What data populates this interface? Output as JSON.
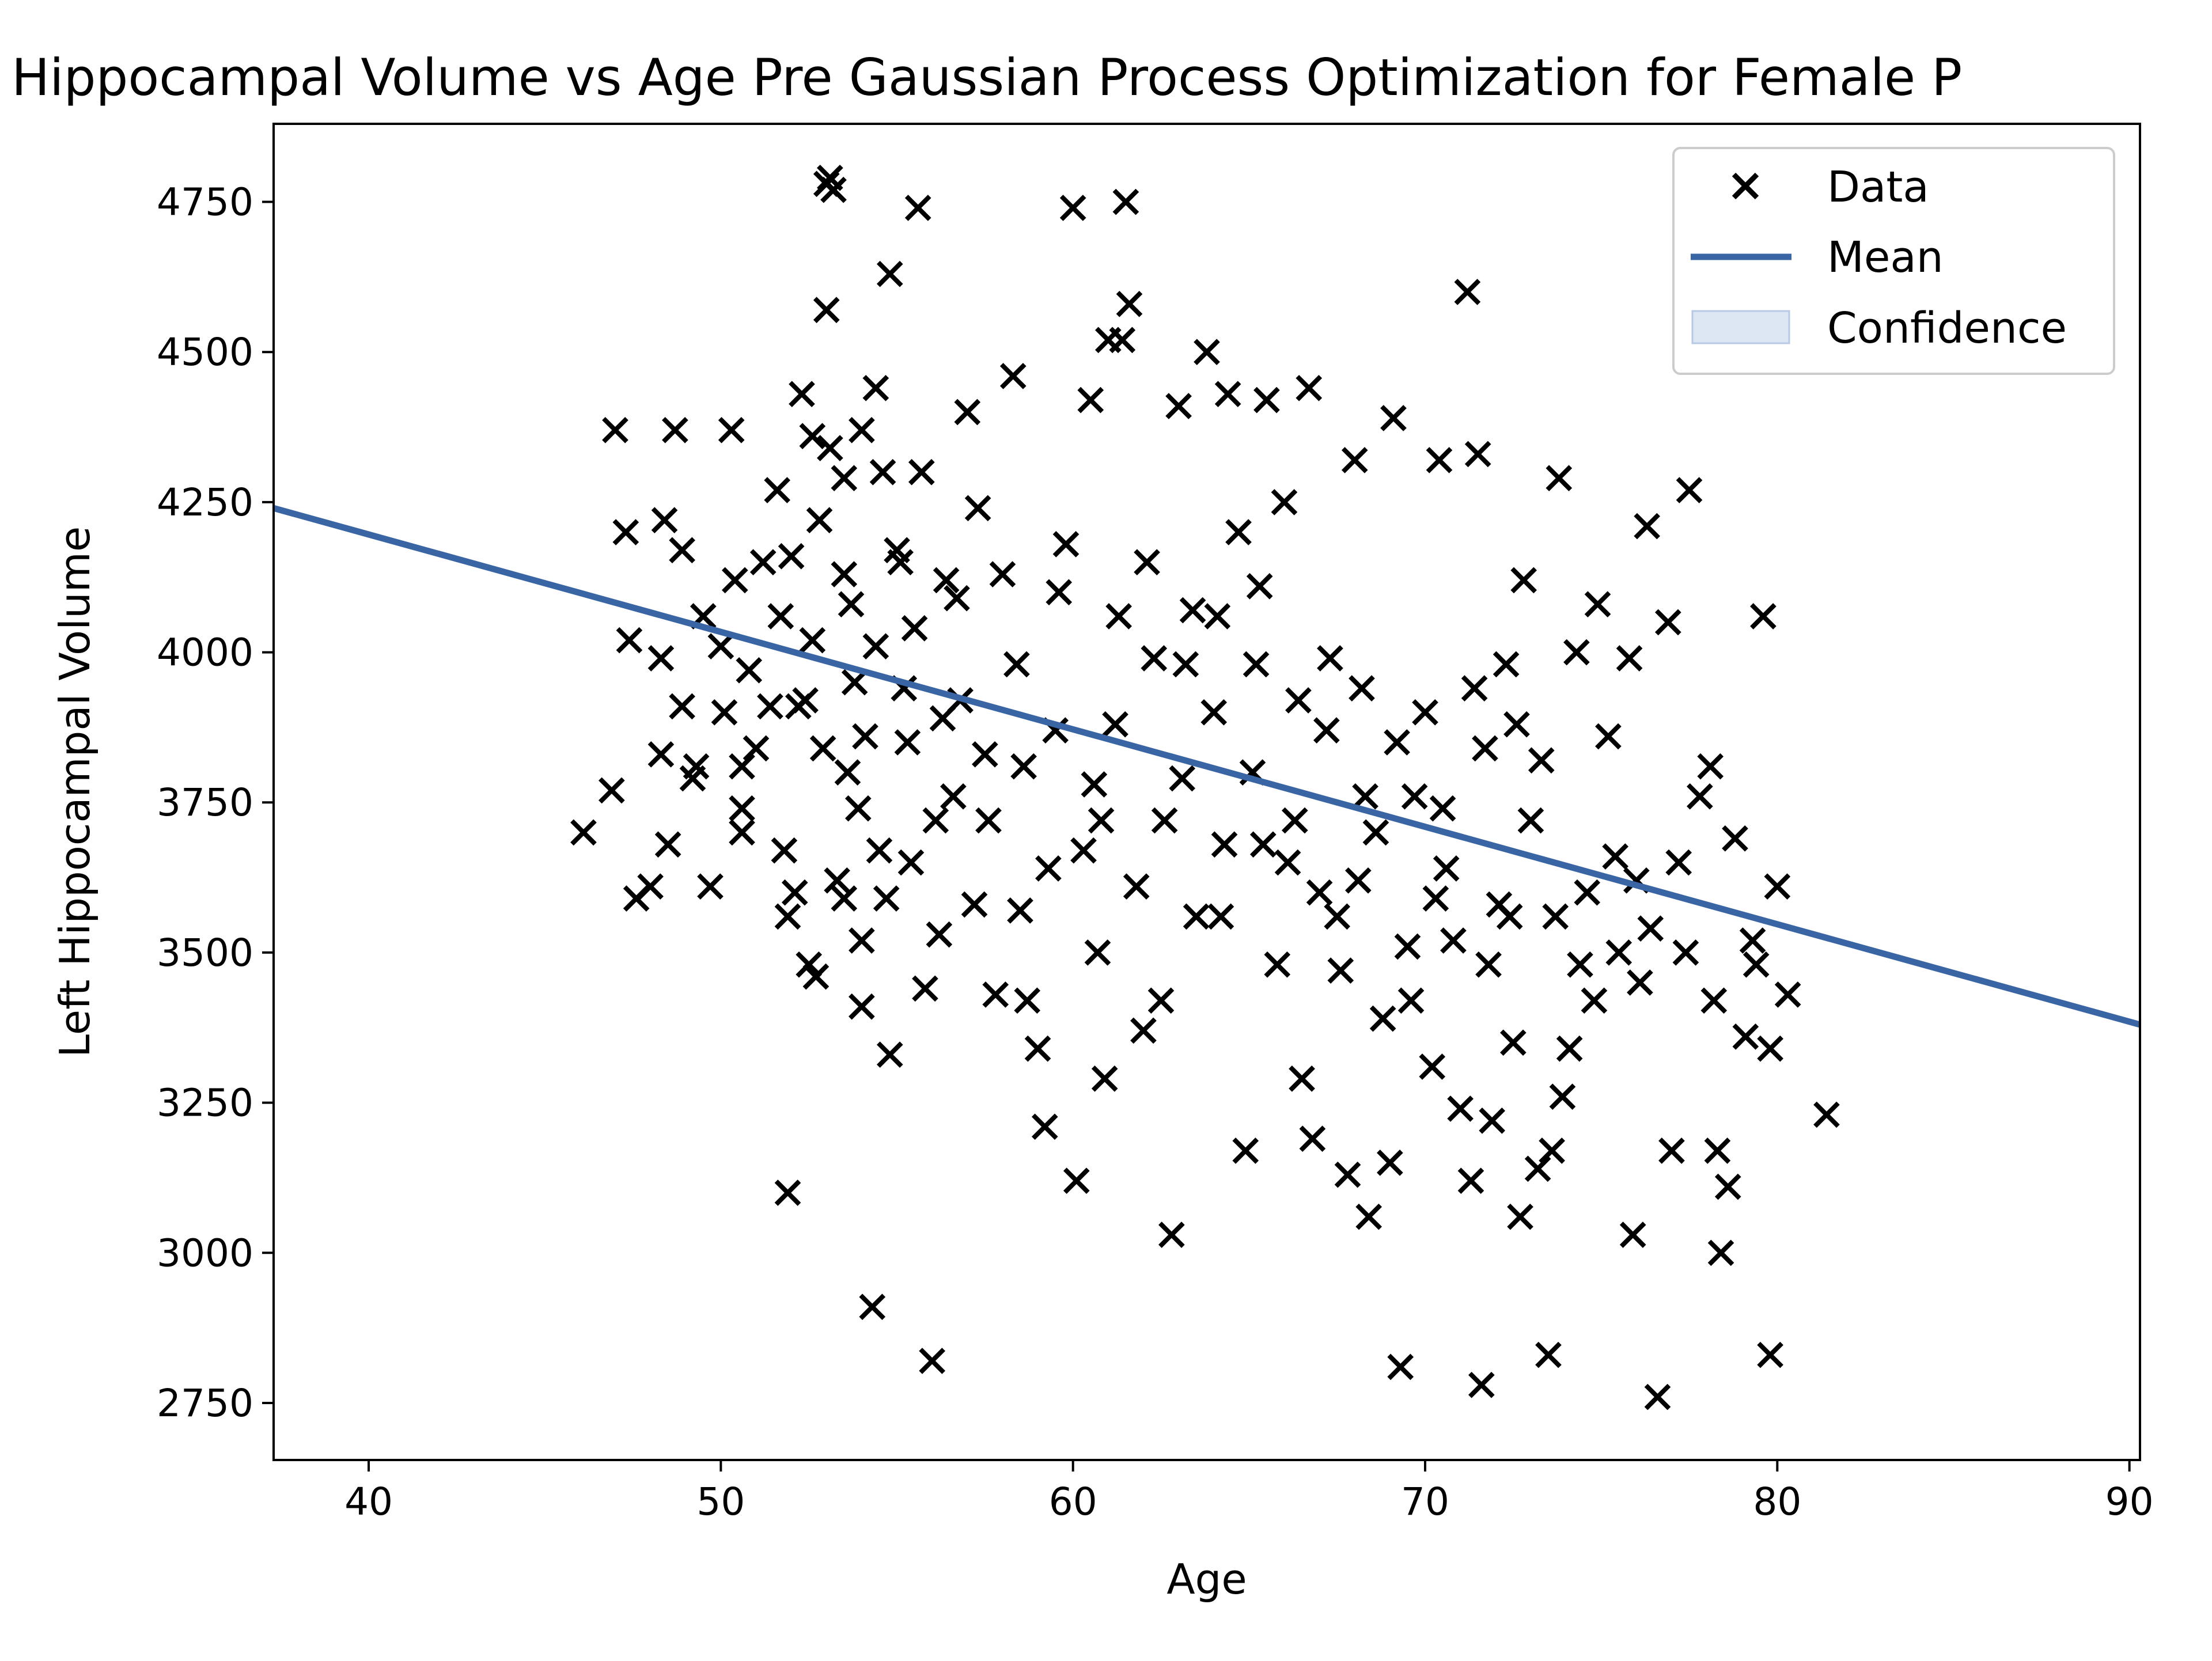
{
  "chart_data": {
    "type": "scatter",
    "title": "Hippocampal Volume vs Age Pre Gaussian Process Optimization for Female P",
    "xlabel": "Age",
    "ylabel": "Left Hippocampal Volume",
    "xlim": [
      37.3,
      90.3
    ],
    "ylim": [
      2655,
      4880
    ],
    "x_ticks": [
      40,
      50,
      60,
      70,
      80,
      90
    ],
    "y_ticks": [
      2750,
      3000,
      3250,
      3500,
      3750,
      4000,
      4250,
      4500,
      4750
    ],
    "grid": false,
    "legend_position": "top-right",
    "legend": [
      {
        "label": "Data",
        "marker": "x"
      },
      {
        "label": "Mean",
        "marker": "line"
      },
      {
        "label": "Confidence",
        "marker": "patch"
      }
    ],
    "colors": {
      "data": "#000000",
      "mean": "#3a65a4",
      "confidence": "#dde6f3",
      "confidence_edge": "#b8c9e3"
    },
    "series": [
      {
        "name": "Data",
        "kind": "scatter",
        "points": [
          [
            46.1,
            3700
          ],
          [
            46.9,
            3770
          ],
          [
            47.0,
            4370
          ],
          [
            47.3,
            4200
          ],
          [
            47.4,
            4020
          ],
          [
            47.6,
            3590
          ],
          [
            48.0,
            3610
          ],
          [
            48.3,
            3830
          ],
          [
            48.3,
            3990
          ],
          [
            48.4,
            4220
          ],
          [
            48.5,
            3680
          ],
          [
            48.7,
            4370
          ],
          [
            48.9,
            4170
          ],
          [
            48.9,
            3910
          ],
          [
            49.2,
            3790
          ],
          [
            49.3,
            3810
          ],
          [
            49.5,
            4060
          ],
          [
            49.7,
            3610
          ],
          [
            50.0,
            4010
          ],
          [
            50.1,
            3900
          ],
          [
            50.3,
            4370
          ],
          [
            50.4,
            4120
          ],
          [
            50.6,
            3740
          ],
          [
            50.6,
            3700
          ],
          [
            50.6,
            3810
          ],
          [
            50.8,
            3970
          ],
          [
            51.0,
            3840
          ],
          [
            51.2,
            4150
          ],
          [
            51.4,
            3910
          ],
          [
            51.6,
            4270
          ],
          [
            51.7,
            4060
          ],
          [
            51.8,
            3670
          ],
          [
            51.9,
            3560
          ],
          [
            51.9,
            3100
          ],
          [
            52.0,
            4160
          ],
          [
            52.1,
            3600
          ],
          [
            52.3,
            4430
          ],
          [
            52.4,
            3920
          ],
          [
            52.5,
            3480
          ],
          [
            52.6,
            4360
          ],
          [
            52.7,
            3460
          ],
          [
            52.8,
            4220
          ],
          [
            52.9,
            3840
          ],
          [
            53.0,
            4780
          ],
          [
            53.0,
            4570
          ],
          [
            53.1,
            4790
          ],
          [
            53.1,
            4340
          ],
          [
            53.2,
            4770
          ],
          [
            53.3,
            3620
          ],
          [
            53.5,
            4130
          ],
          [
            53.5,
            4290
          ],
          [
            53.5,
            3590
          ],
          [
            53.7,
            4080
          ],
          [
            53.8,
            3950
          ],
          [
            54.0,
            4370
          ],
          [
            54.0,
            3410
          ],
          [
            54.0,
            3520
          ],
          [
            54.1,
            3860
          ],
          [
            54.3,
            2910
          ],
          [
            54.4,
            4440
          ],
          [
            54.5,
            3670
          ],
          [
            54.6,
            4300
          ],
          [
            54.7,
            3590
          ],
          [
            54.8,
            3330
          ],
          [
            54.8,
            4630
          ],
          [
            55.0,
            4170
          ],
          [
            55.2,
            3940
          ],
          [
            55.3,
            3850
          ],
          [
            55.5,
            4040
          ],
          [
            55.6,
            4740
          ],
          [
            55.7,
            4300
          ],
          [
            55.8,
            3440
          ],
          [
            56.0,
            2820
          ],
          [
            56.1,
            3720
          ],
          [
            56.2,
            3530
          ],
          [
            56.4,
            4120
          ],
          [
            56.6,
            3760
          ],
          [
            56.8,
            3920
          ],
          [
            57.0,
            4400
          ],
          [
            57.2,
            3580
          ],
          [
            57.5,
            3830
          ],
          [
            57.8,
            3430
          ],
          [
            58.0,
            4130
          ],
          [
            58.3,
            4460
          ],
          [
            58.5,
            3570
          ],
          [
            58.7,
            3420
          ],
          [
            59.0,
            3340
          ],
          [
            59.2,
            3210
          ],
          [
            59.5,
            3870
          ],
          [
            59.8,
            4180
          ],
          [
            60.0,
            4740
          ],
          [
            60.1,
            3120
          ],
          [
            60.3,
            3670
          ],
          [
            60.5,
            4420
          ],
          [
            60.7,
            3500
          ],
          [
            60.9,
            3290
          ],
          [
            61.0,
            4520
          ],
          [
            61.2,
            3880
          ],
          [
            61.4,
            4520
          ],
          [
            61.5,
            4750
          ],
          [
            61.6,
            4580
          ],
          [
            61.8,
            3610
          ],
          [
            62.0,
            3370
          ],
          [
            62.3,
            3990
          ],
          [
            62.5,
            3420
          ],
          [
            62.8,
            3030
          ],
          [
            63.0,
            4410
          ],
          [
            63.2,
            3980
          ],
          [
            63.5,
            3560
          ],
          [
            63.8,
            4500
          ],
          [
            64.0,
            3900
          ],
          [
            64.2,
            3560
          ],
          [
            64.4,
            4430
          ],
          [
            64.7,
            4200
          ],
          [
            64.9,
            3170
          ],
          [
            65.1,
            3800
          ],
          [
            65.3,
            4110
          ],
          [
            65.5,
            4420
          ],
          [
            65.8,
            3480
          ],
          [
            66.0,
            4250
          ],
          [
            66.3,
            3720
          ],
          [
            66.5,
            3290
          ],
          [
            66.7,
            4440
          ],
          [
            66.8,
            3190
          ],
          [
            67.0,
            3600
          ],
          [
            67.2,
            3870
          ],
          [
            67.5,
            3560
          ],
          [
            67.8,
            3130
          ],
          [
            68.0,
            4320
          ],
          [
            68.2,
            3940
          ],
          [
            68.4,
            3060
          ],
          [
            68.6,
            3700
          ],
          [
            68.8,
            3390
          ],
          [
            69.0,
            3150
          ],
          [
            69.1,
            4390
          ],
          [
            69.3,
            2810
          ],
          [
            69.5,
            3510
          ],
          [
            69.7,
            3760
          ],
          [
            70.0,
            3900
          ],
          [
            70.2,
            3310
          ],
          [
            70.4,
            4320
          ],
          [
            70.6,
            3640
          ],
          [
            70.8,
            3520
          ],
          [
            71.0,
            3240
          ],
          [
            71.2,
            4600
          ],
          [
            71.3,
            3120
          ],
          [
            71.5,
            4330
          ],
          [
            71.6,
            2780
          ],
          [
            71.7,
            3840
          ],
          [
            71.9,
            3220
          ],
          [
            72.1,
            3580
          ],
          [
            72.3,
            3980
          ],
          [
            72.5,
            3350
          ],
          [
            72.7,
            3060
          ],
          [
            72.8,
            4120
          ],
          [
            73.0,
            3720
          ],
          [
            73.2,
            3140
          ],
          [
            73.5,
            2830
          ],
          [
            73.6,
            3170
          ],
          [
            73.8,
            4290
          ],
          [
            73.9,
            3260
          ],
          [
            74.1,
            3340
          ],
          [
            74.3,
            4000
          ],
          [
            74.6,
            3600
          ],
          [
            74.9,
            4080
          ],
          [
            75.2,
            3860
          ],
          [
            75.5,
            3500
          ],
          [
            75.8,
            3990
          ],
          [
            75.9,
            3030
          ],
          [
            76.1,
            3450
          ],
          [
            76.3,
            4210
          ],
          [
            76.6,
            2760
          ],
          [
            76.9,
            4050
          ],
          [
            77.0,
            3170
          ],
          [
            77.2,
            3650
          ],
          [
            77.5,
            4270
          ],
          [
            77.8,
            3760
          ],
          [
            78.1,
            3810
          ],
          [
            78.3,
            3170
          ],
          [
            78.4,
            3000
          ],
          [
            78.6,
            3110
          ],
          [
            78.8,
            3690
          ],
          [
            79.1,
            3360
          ],
          [
            79.3,
            3520
          ],
          [
            79.6,
            4060
          ],
          [
            79.8,
            3340
          ],
          [
            79.8,
            2830
          ],
          [
            80.0,
            3610
          ],
          [
            80.3,
            3430
          ],
          [
            81.4,
            3230
          ],
          [
            52.2,
            3910
          ],
          [
            53.6,
            3800
          ],
          [
            54.4,
            4010
          ],
          [
            55.4,
            3650
          ],
          [
            56.7,
            4090
          ],
          [
            57.6,
            3720
          ],
          [
            58.4,
            3980
          ],
          [
            59.3,
            3640
          ],
          [
            60.6,
            3780
          ],
          [
            61.3,
            4060
          ],
          [
            62.6,
            3720
          ],
          [
            63.4,
            4070
          ],
          [
            64.3,
            3680
          ],
          [
            65.2,
            3980
          ],
          [
            66.1,
            3650
          ],
          [
            67.3,
            3990
          ],
          [
            68.1,
            3620
          ],
          [
            69.2,
            3850
          ],
          [
            70.3,
            3590
          ],
          [
            71.4,
            3940
          ],
          [
            72.4,
            3560
          ],
          [
            73.3,
            3820
          ],
          [
            74.4,
            3480
          ],
          [
            75.4,
            3660
          ],
          [
            76.4,
            3540
          ],
          [
            77.4,
            3500
          ],
          [
            78.2,
            3420
          ],
          [
            79.4,
            3480
          ],
          [
            52.6,
            4020
          ],
          [
            53.9,
            3740
          ],
          [
            55.1,
            4150
          ],
          [
            56.3,
            3890
          ],
          [
            57.3,
            4240
          ],
          [
            58.6,
            3810
          ],
          [
            59.6,
            4100
          ],
          [
            60.8,
            3720
          ],
          [
            62.1,
            4150
          ],
          [
            63.1,
            3790
          ],
          [
            64.1,
            4060
          ],
          [
            65.4,
            3680
          ],
          [
            66.4,
            3920
          ],
          [
            67.6,
            3470
          ],
          [
            68.3,
            3760
          ],
          [
            69.6,
            3420
          ],
          [
            70.5,
            3740
          ],
          [
            71.8,
            3480
          ],
          [
            72.6,
            3880
          ],
          [
            73.7,
            3560
          ],
          [
            74.8,
            3420
          ],
          [
            76.0,
            3620
          ]
        ]
      },
      {
        "name": "Mean",
        "kind": "line",
        "points": [
          [
            37.3,
            4240
          ],
          [
            90.3,
            3380
          ]
        ]
      }
    ]
  }
}
